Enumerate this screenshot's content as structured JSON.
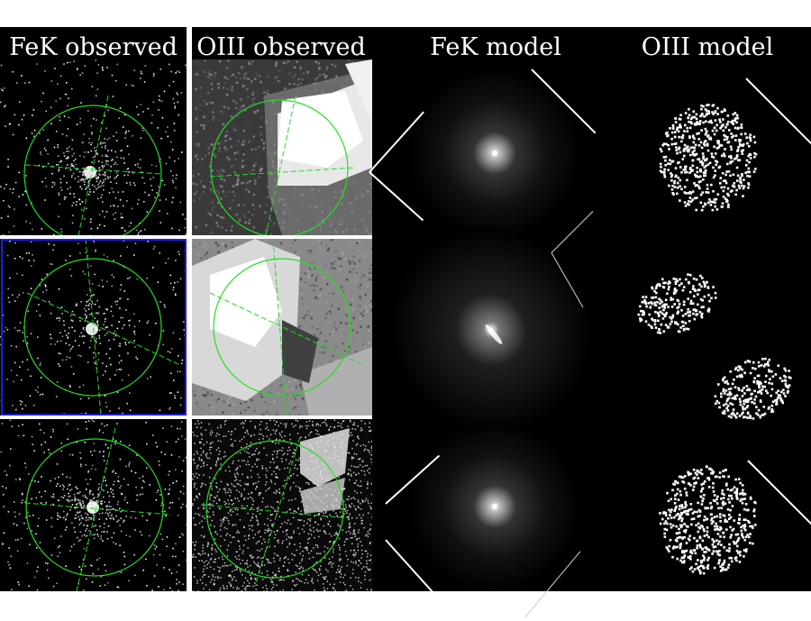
{
  "figure": {
    "columns": [
      {
        "key": "fek_observed",
        "title": "FeK observed"
      },
      {
        "key": "oiii_observed",
        "title": "OIII observed"
      },
      {
        "key": "fek_model",
        "title": "FeK model"
      },
      {
        "key": "oiii_model",
        "title": "OIII model"
      }
    ],
    "rows": 3,
    "colors": {
      "background": "#000000",
      "overlay": "#22dd22",
      "frame": "#1a1aff",
      "divider": "#ffffff"
    }
  }
}
